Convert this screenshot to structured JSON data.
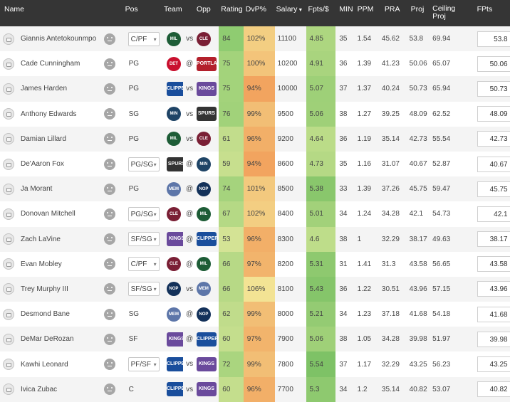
{
  "columns": {
    "name": "Name",
    "pos": "Pos",
    "team": "Team",
    "opp": "Opp",
    "rating": "Rating",
    "dvp": "DvP%",
    "salary": "Salary",
    "fpts_per": "Fpts/$",
    "min": "MIN",
    "ppm": "PPM",
    "pra": "PRA",
    "proj": "Proj",
    "ceiling1": "Ceiling",
    "ceiling2": "Proj",
    "fpts": "FPts",
    "sort_icon": "caret-down-icon"
  },
  "colors": {
    "header_bg": "#353535",
    "rating_scale": {
      "low": "#d4e395",
      "high": "#8fcc71"
    },
    "dvp_scale": {
      "low": "#f3e394",
      "high": "#f2a45f"
    },
    "fpts_scale": {
      "low": "#bedd8a",
      "high": "#7ec266"
    }
  },
  "players": [
    {
      "name": "Giannis Antetokounmpo",
      "pos": "C/PF",
      "pos_select": true,
      "team": "MIL",
      "sep": "vs",
      "opp": "CLE",
      "rating": "84",
      "dvp": "102%",
      "salary": "11100",
      "fpts_per": "4.85",
      "min": "35",
      "ppm": "1.54",
      "pra": "45.62",
      "proj": "53.8",
      "ceiling": "69.94",
      "fpts": "53.8"
    },
    {
      "name": "Cade Cunningham",
      "pos": "PG",
      "pos_select": false,
      "team": "DET",
      "sep": "@",
      "opp": "POR",
      "rating": "75",
      "dvp": "100%",
      "salary": "10200",
      "fpts_per": "4.91",
      "min": "36",
      "ppm": "1.39",
      "pra": "41.23",
      "proj": "50.06",
      "ceiling": "65.07",
      "fpts": "50.06"
    },
    {
      "name": "James Harden",
      "pos": "PG",
      "pos_select": false,
      "team": "LAC",
      "sep": "vs",
      "opp": "SAC",
      "rating": "75",
      "dvp": "94%",
      "salary": "10000",
      "fpts_per": "5.07",
      "min": "37",
      "ppm": "1.37",
      "pra": "40.24",
      "proj": "50.73",
      "ceiling": "65.94",
      "fpts": "50.73"
    },
    {
      "name": "Anthony Edwards",
      "pos": "SG",
      "pos_select": false,
      "team": "MIN",
      "sep": "vs",
      "opp": "SAS",
      "rating": "76",
      "dvp": "99%",
      "salary": "9500",
      "fpts_per": "5.06",
      "min": "38",
      "ppm": "1.27",
      "pra": "39.25",
      "proj": "48.09",
      "ceiling": "62.52",
      "fpts": "48.09"
    },
    {
      "name": "Damian Lillard",
      "pos": "PG",
      "pos_select": false,
      "team": "MIL",
      "sep": "vs",
      "opp": "CLE",
      "rating": "61",
      "dvp": "96%",
      "salary": "9200",
      "fpts_per": "4.64",
      "min": "36",
      "ppm": "1.19",
      "pra": "35.14",
      "proj": "42.73",
      "ceiling": "55.54",
      "fpts": "42.73"
    },
    {
      "name": "De'Aaron Fox",
      "pos": "PG/SG",
      "pos_select": true,
      "team": "SAS",
      "sep": "@",
      "opp": "MIN",
      "rating": "59",
      "dvp": "94%",
      "salary": "8600",
      "fpts_per": "4.73",
      "min": "35",
      "ppm": "1.16",
      "pra": "31.07",
      "proj": "40.67",
      "ceiling": "52.87",
      "fpts": "40.67"
    },
    {
      "name": "Ja Morant",
      "pos": "PG",
      "pos_select": false,
      "team": "MEM",
      "sep": "@",
      "opp": "NOP",
      "rating": "74",
      "dvp": "101%",
      "salary": "8500",
      "fpts_per": "5.38",
      "min": "33",
      "ppm": "1.39",
      "pra": "37.26",
      "proj": "45.75",
      "ceiling": "59.47",
      "fpts": "45.75"
    },
    {
      "name": "Donovan Mitchell",
      "pos": "PG/SG",
      "pos_select": true,
      "team": "CLE",
      "sep": "@",
      "opp": "MIL",
      "rating": "67",
      "dvp": "102%",
      "salary": "8400",
      "fpts_per": "5.01",
      "min": "34",
      "ppm": "1.24",
      "pra": "34.28",
      "proj": "42.1",
      "ceiling": "54.73",
      "fpts": "42.1"
    },
    {
      "name": "Zach LaVine",
      "pos": "SF/SG",
      "pos_select": true,
      "team": "SAC",
      "sep": "@",
      "opp": "LAC",
      "rating": "53",
      "dvp": "96%",
      "salary": "8300",
      "fpts_per": "4.6",
      "min": "38",
      "ppm": "1",
      "pra": "32.29",
      "proj": "38.17",
      "ceiling": "49.63",
      "fpts": "38.17"
    },
    {
      "name": "Evan Mobley",
      "pos": "C/PF",
      "pos_select": true,
      "team": "CLE",
      "sep": "@",
      "opp": "MIL",
      "rating": "66",
      "dvp": "97%",
      "salary": "8200",
      "fpts_per": "5.31",
      "min": "31",
      "ppm": "1.41",
      "pra": "31.3",
      "proj": "43.58",
      "ceiling": "56.65",
      "fpts": "43.58"
    },
    {
      "name": "Trey Murphy III",
      "pos": "SF/SG",
      "pos_select": true,
      "team": "NOP",
      "sep": "vs",
      "opp": "MEM",
      "rating": "66",
      "dvp": "106%",
      "salary": "8100",
      "fpts_per": "5.43",
      "min": "36",
      "ppm": "1.22",
      "pra": "30.51",
      "proj": "43.96",
      "ceiling": "57.15",
      "fpts": "43.96"
    },
    {
      "name": "Desmond Bane",
      "pos": "SG",
      "pos_select": false,
      "team": "MEM",
      "sep": "@",
      "opp": "NOP",
      "rating": "62",
      "dvp": "99%",
      "salary": "8000",
      "fpts_per": "5.21",
      "min": "34",
      "ppm": "1.23",
      "pra": "37.18",
      "proj": "41.68",
      "ceiling": "54.18",
      "fpts": "41.68"
    },
    {
      "name": "DeMar DeRozan",
      "pos": "SF",
      "pos_select": false,
      "team": "SAC",
      "sep": "@",
      "opp": "LAC",
      "rating": "60",
      "dvp": "97%",
      "salary": "7900",
      "fpts_per": "5.06",
      "min": "38",
      "ppm": "1.05",
      "pra": "34.28",
      "proj": "39.98",
      "ceiling": "51.97",
      "fpts": "39.98"
    },
    {
      "name": "Kawhi Leonard",
      "pos": "PF/SF",
      "pos_select": true,
      "team": "LAC",
      "sep": "vs",
      "opp": "SAC",
      "rating": "72",
      "dvp": "99%",
      "salary": "7800",
      "fpts_per": "5.54",
      "min": "37",
      "ppm": "1.17",
      "pra": "32.29",
      "proj": "43.25",
      "ceiling": "56.23",
      "fpts": "43.25"
    },
    {
      "name": "Ivica Zubac",
      "pos": "C",
      "pos_select": false,
      "team": "LAC",
      "sep": "vs",
      "opp": "SAC",
      "rating": "60",
      "dvp": "96%",
      "salary": "7700",
      "fpts_per": "5.3",
      "min": "34",
      "ppm": "1.2",
      "pra": "35.14",
      "proj": "40.82",
      "ceiling": "53.07",
      "fpts": "40.82"
    }
  ],
  "logos": {
    "MIL": {
      "icon": "bucks-logo-icon",
      "color": "#1d5c36",
      "label": "MIL",
      "wide": false
    },
    "CLE": {
      "icon": "cavaliers-logo-icon",
      "color": "#7a1f35",
      "label": "CLE",
      "wide": false
    },
    "DET": {
      "icon": "pistons-logo-icon",
      "color": "#c9102e",
      "label": "DET",
      "wide": false
    },
    "POR": {
      "icon": "trail-blazers-logo-icon",
      "color": "#b3202c",
      "label": "PORTLAND",
      "wide": true
    },
    "LAC": {
      "icon": "clippers-logo-icon",
      "color": "#1a4e9c",
      "label": "CLIPPERS",
      "wide": true
    },
    "SAC": {
      "icon": "kings-logo-icon",
      "color": "#6a4a9c",
      "label": "KINGS",
      "wide": true
    },
    "MIN": {
      "icon": "timberwolves-logo-icon",
      "color": "#1f4466",
      "label": "MIN",
      "wide": false
    },
    "SAS": {
      "icon": "spurs-logo-icon",
      "color": "#333333",
      "label": "SPURS",
      "wide": true
    },
    "MEM": {
      "icon": "grizzlies-logo-icon",
      "color": "#5d76a9",
      "label": "MEM",
      "wide": false
    },
    "NOP": {
      "icon": "pelicans-logo-icon",
      "color": "#13315a",
      "label": "NOP",
      "wide": false
    }
  }
}
